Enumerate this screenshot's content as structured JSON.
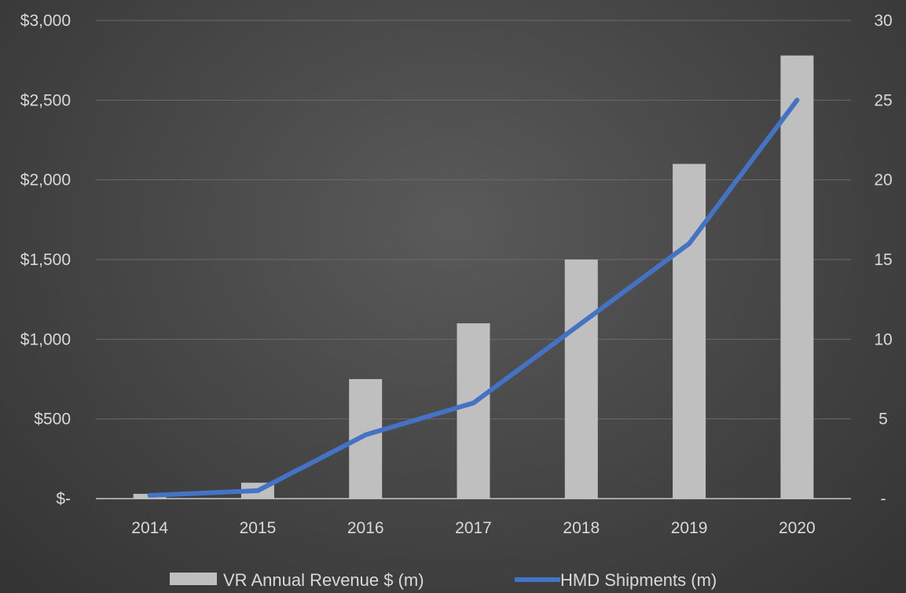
{
  "chart_data": {
    "type": "bar+line",
    "categories": [
      "2014",
      "2015",
      "2016",
      "2017",
      "2018",
      "2019",
      "2020"
    ],
    "series": [
      {
        "name": "VR Annual Revenue $ (m)",
        "type": "bar",
        "axis": "left",
        "color": "#bfbfbf",
        "values": [
          30,
          100,
          750,
          1100,
          1500,
          2100,
          2780
        ]
      },
      {
        "name": "HMD Shipments (m)",
        "type": "line",
        "axis": "right",
        "color": "#4472c4",
        "values": [
          0.2,
          0.5,
          4,
          6,
          11,
          16,
          25
        ]
      }
    ],
    "y_left": {
      "range": [
        0,
        3000
      ],
      "tick_values": [
        0,
        500,
        1000,
        1500,
        2000,
        2500,
        3000
      ],
      "tick_labels": [
        "$-",
        "$500",
        "$1,000",
        "$1,500",
        "$2,000",
        "$2,500",
        "$3,000"
      ]
    },
    "y_right": {
      "range": [
        0,
        30
      ],
      "tick_values": [
        0,
        5,
        10,
        15,
        20,
        25,
        30
      ],
      "tick_labels": [
        "-",
        "5",
        "10",
        "15",
        "20",
        "25",
        "30"
      ]
    },
    "title": "",
    "xlabel": "",
    "grid": true,
    "legend_position": "bottom"
  }
}
